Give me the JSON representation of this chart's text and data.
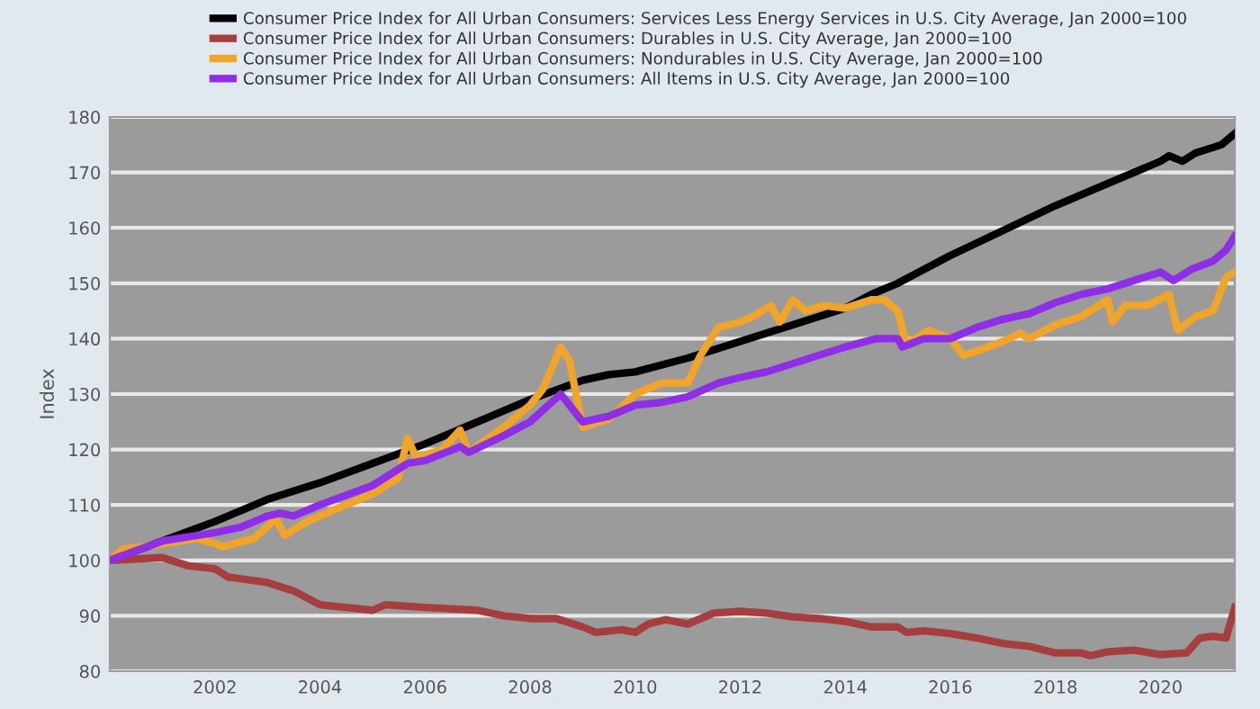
{
  "chart_data": {
    "type": "line",
    "ylabel": "Index",
    "legend": "top",
    "grid": "y",
    "xlim": [
      "2000-01",
      "2021-06"
    ],
    "ylim": [
      80,
      180
    ],
    "yticks": [
      80,
      90,
      100,
      110,
      120,
      130,
      140,
      150,
      160,
      170,
      180
    ],
    "xticks": [
      {
        "value": "2002-01",
        "label": "2002"
      },
      {
        "value": "2004-01",
        "label": "2004"
      },
      {
        "value": "2006-01",
        "label": "2006"
      },
      {
        "value": "2008-01",
        "label": "2008"
      },
      {
        "value": "2010-01",
        "label": "2010"
      },
      {
        "value": "2012-01",
        "label": "2012"
      },
      {
        "value": "2014-01",
        "label": "2014"
      },
      {
        "value": "2016-01",
        "label": "2016"
      },
      {
        "value": "2018-01",
        "label": "2018"
      },
      {
        "value": "2020-01",
        "label": "2020"
      }
    ],
    "series": [
      {
        "name": "Consumer Price Index for All Urban Consumers: Services Less Energy Services in U.S. City Average, Jan 2000=100",
        "color": "#000000",
        "x": [
          "2000-01",
          "2001-01",
          "2002-01",
          "2003-01",
          "2004-01",
          "2005-01",
          "2006-01",
          "2007-01",
          "2008-01",
          "2009-01",
          "2009-07",
          "2010-01",
          "2011-01",
          "2012-01",
          "2013-01",
          "2014-01",
          "2014-07",
          "2015-01",
          "2016-01",
          "2017-01",
          "2018-01",
          "2019-01",
          "2020-01",
          "2020-03",
          "2020-06",
          "2020-09",
          "2021-01",
          "2021-03",
          "2021-06"
        ],
        "values": [
          100,
          103.5,
          107,
          111,
          114,
          117.5,
          121,
          125,
          129,
          132.5,
          133.5,
          134,
          136.5,
          139.5,
          142.5,
          145.5,
          148,
          150,
          155,
          159.5,
          164,
          168,
          172,
          173,
          172,
          173.5,
          174.5,
          175,
          177
        ]
      },
      {
        "name": "Consumer Price Index for All Urban Consumers: Durables in U.S. City Average, Jan 2000=100",
        "color": "#a53f3f",
        "x": [
          "2000-01",
          "2001-01",
          "2001-07",
          "2002-01",
          "2002-04",
          "2003-01",
          "2003-07",
          "2004-01",
          "2004-07",
          "2005-01",
          "2005-04",
          "2006-01",
          "2007-01",
          "2007-07",
          "2008-01",
          "2008-07",
          "2009-01",
          "2009-04",
          "2009-10",
          "2010-01",
          "2010-04",
          "2010-08",
          "2011-01",
          "2011-07",
          "2012-01",
          "2012-07",
          "2013-01",
          "2013-07",
          "2014-01",
          "2014-07",
          "2015-01",
          "2015-03",
          "2015-07",
          "2016-01",
          "2016-07",
          "2017-01",
          "2017-07",
          "2018-01",
          "2018-07",
          "2018-09",
          "2019-01",
          "2019-07",
          "2020-01",
          "2020-07",
          "2020-10",
          "2021-01",
          "2021-04",
          "2021-06"
        ],
        "values": [
          100,
          100.5,
          99,
          98.5,
          97,
          96,
          94.5,
          92,
          91.5,
          91,
          92,
          91.5,
          91,
          90,
          89.5,
          89.5,
          88,
          87,
          87.5,
          87,
          88.5,
          89.3,
          88.5,
          90.5,
          90.8,
          90.5,
          89.8,
          89.5,
          89,
          88,
          88,
          87,
          87.3,
          86.8,
          86,
          85,
          84.5,
          83.3,
          83.3,
          82.8,
          83.5,
          83.8,
          83,
          83.3,
          86,
          86.3,
          86,
          91.5
        ]
      },
      {
        "name": "Consumer Price Index for All Urban Consumers: Nondurables in U.S. City Average, Jan 2000=100",
        "color": "#f0a52a",
        "x": [
          "2000-01",
          "2000-04",
          "2001-01",
          "2001-09",
          "2002-03",
          "2002-10",
          "2003-03",
          "2003-05",
          "2003-10",
          "2004-07",
          "2005-01",
          "2005-07",
          "2005-09",
          "2005-11",
          "2006-05",
          "2006-09",
          "2006-11",
          "2007-07",
          "2008-01",
          "2008-04",
          "2008-08",
          "2008-10",
          "2009-01",
          "2009-07",
          "2010-01",
          "2010-07",
          "2011-01",
          "2011-04",
          "2011-08",
          "2012-01",
          "2012-04",
          "2012-08",
          "2012-10",
          "2013-01",
          "2013-04",
          "2013-08",
          "2014-01",
          "2014-07",
          "2014-10",
          "2015-01",
          "2015-03",
          "2015-08",
          "2016-01",
          "2016-04",
          "2016-08",
          "2017-01",
          "2017-05",
          "2017-07",
          "2018-01",
          "2018-07",
          "2019-01",
          "2019-02",
          "2019-05",
          "2019-10",
          "2020-03",
          "2020-05",
          "2020-09",
          "2021-01",
          "2021-04",
          "2021-06"
        ],
        "values": [
          100,
          102,
          103,
          104,
          102.5,
          104,
          107.5,
          104.5,
          107,
          110,
          112,
          115,
          122,
          118.5,
          120,
          123.5,
          119.5,
          124,
          128,
          131,
          138.5,
          136,
          124,
          125.5,
          130,
          132,
          132,
          137,
          142,
          143,
          144,
          146,
          143,
          147,
          145,
          146,
          145.5,
          147,
          147,
          145,
          139,
          141.5,
          140,
          137,
          138,
          139.5,
          141,
          140,
          142.5,
          144,
          147,
          143,
          146,
          146,
          148,
          141.5,
          144,
          145,
          151,
          152
        ]
      },
      {
        "name": "Consumer Price Index for All Urban Consumers: All Items in U.S. City Average, Jan 2000=100",
        "color": "#8e2ee6",
        "x": [
          "2000-01",
          "2001-01",
          "2002-01",
          "2002-07",
          "2003-01",
          "2003-04",
          "2003-07",
          "2004-01",
          "2005-01",
          "2005-09",
          "2006-01",
          "2006-09",
          "2006-11",
          "2007-07",
          "2008-01",
          "2008-08",
          "2009-01",
          "2009-07",
          "2010-01",
          "2010-07",
          "2011-01",
          "2011-08",
          "2012-01",
          "2012-07",
          "2013-01",
          "2013-07",
          "2014-01",
          "2014-08",
          "2015-01",
          "2015-02",
          "2015-07",
          "2016-01",
          "2016-07",
          "2017-01",
          "2017-07",
          "2018-01",
          "2018-07",
          "2019-01",
          "2019-07",
          "2020-01",
          "2020-04",
          "2020-08",
          "2021-01",
          "2021-04",
          "2021-06"
        ],
        "values": [
          100,
          103.5,
          105,
          106,
          108,
          108.5,
          108,
          110,
          113.5,
          117.5,
          118,
          120.5,
          119.5,
          122.5,
          125,
          130,
          125,
          126,
          128,
          128.5,
          129.5,
          132,
          133,
          134,
          135.5,
          137,
          138.5,
          140,
          140,
          138.5,
          140,
          140,
          142,
          143.5,
          144.5,
          146.5,
          148,
          149,
          150.5,
          152,
          150.5,
          152.5,
          154,
          156,
          158.5
        ]
      }
    ]
  }
}
